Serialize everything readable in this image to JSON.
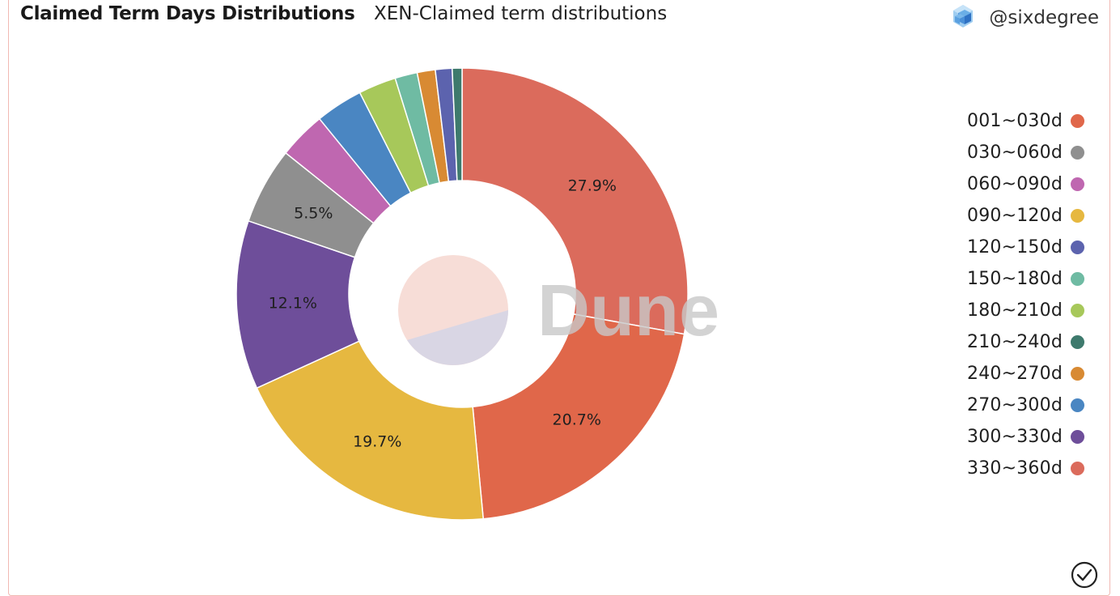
{
  "header": {
    "title": "Claimed Term Days Distributions",
    "subtitle": "XEN-Claimed term distributions",
    "author": "@sixdegree",
    "author_icon": "cube-logo-icon"
  },
  "watermark": "Dune",
  "chart_data": {
    "type": "pie",
    "donut": true,
    "legend_position": "right",
    "slices": [
      {
        "label": "001~030d",
        "value": 27.9,
        "color": "#db6b5c",
        "show_label": true
      },
      {
        "label": "030~060d",
        "value": 20.7,
        "color": "#e0674a",
        "show_label": true
      },
      {
        "label": "060~090d",
        "value": 19.7,
        "color": "#e6b840",
        "show_label": true
      },
      {
        "label": "090~120d",
        "value": 12.1,
        "color": "#6e4e9a",
        "show_label": true
      },
      {
        "label": "120~150d",
        "value": 5.5,
        "color": "#8f8f8f",
        "show_label": true
      },
      {
        "label": "150~180d",
        "value": 3.4,
        "color": "#bf67b0",
        "show_label": false
      },
      {
        "label": "180~210d",
        "value": 3.4,
        "color": "#4a86c2",
        "show_label": false
      },
      {
        "label": "210~240d",
        "value": 2.7,
        "color": "#a7c85a",
        "show_label": false
      },
      {
        "label": "240~270d",
        "value": 1.6,
        "color": "#6fbba3",
        "show_label": false
      },
      {
        "label": "270~300d",
        "value": 1.3,
        "color": "#d88a33",
        "show_label": false
      },
      {
        "label": "300~330d",
        "value": 1.2,
        "color": "#5c63ae",
        "show_label": false
      },
      {
        "label": "330~360d",
        "value": 0.7,
        "color": "#3e7a6d",
        "show_label": false
      }
    ],
    "legend": [
      {
        "label": "001~030d",
        "color": "#e0674a"
      },
      {
        "label": "030~060d",
        "color": "#8f8f8f"
      },
      {
        "label": "060~090d",
        "color": "#bf67b0"
      },
      {
        "label": "090~120d",
        "color": "#e6b840"
      },
      {
        "label": "120~150d",
        "color": "#5c63ae"
      },
      {
        "label": "150~180d",
        "color": "#6fbba3"
      },
      {
        "label": "180~210d",
        "color": "#a7c85a"
      },
      {
        "label": "210~240d",
        "color": "#3e7a6d"
      },
      {
        "label": "240~270d",
        "color": "#d88a33"
      },
      {
        "label": "270~300d",
        "color": "#4a86c2"
      },
      {
        "label": "300~330d",
        "color": "#6e4e9a"
      },
      {
        "label": "330~360d",
        "color": "#db6b5c"
      }
    ]
  },
  "footer": {
    "check_icon": "check-circle-icon"
  }
}
